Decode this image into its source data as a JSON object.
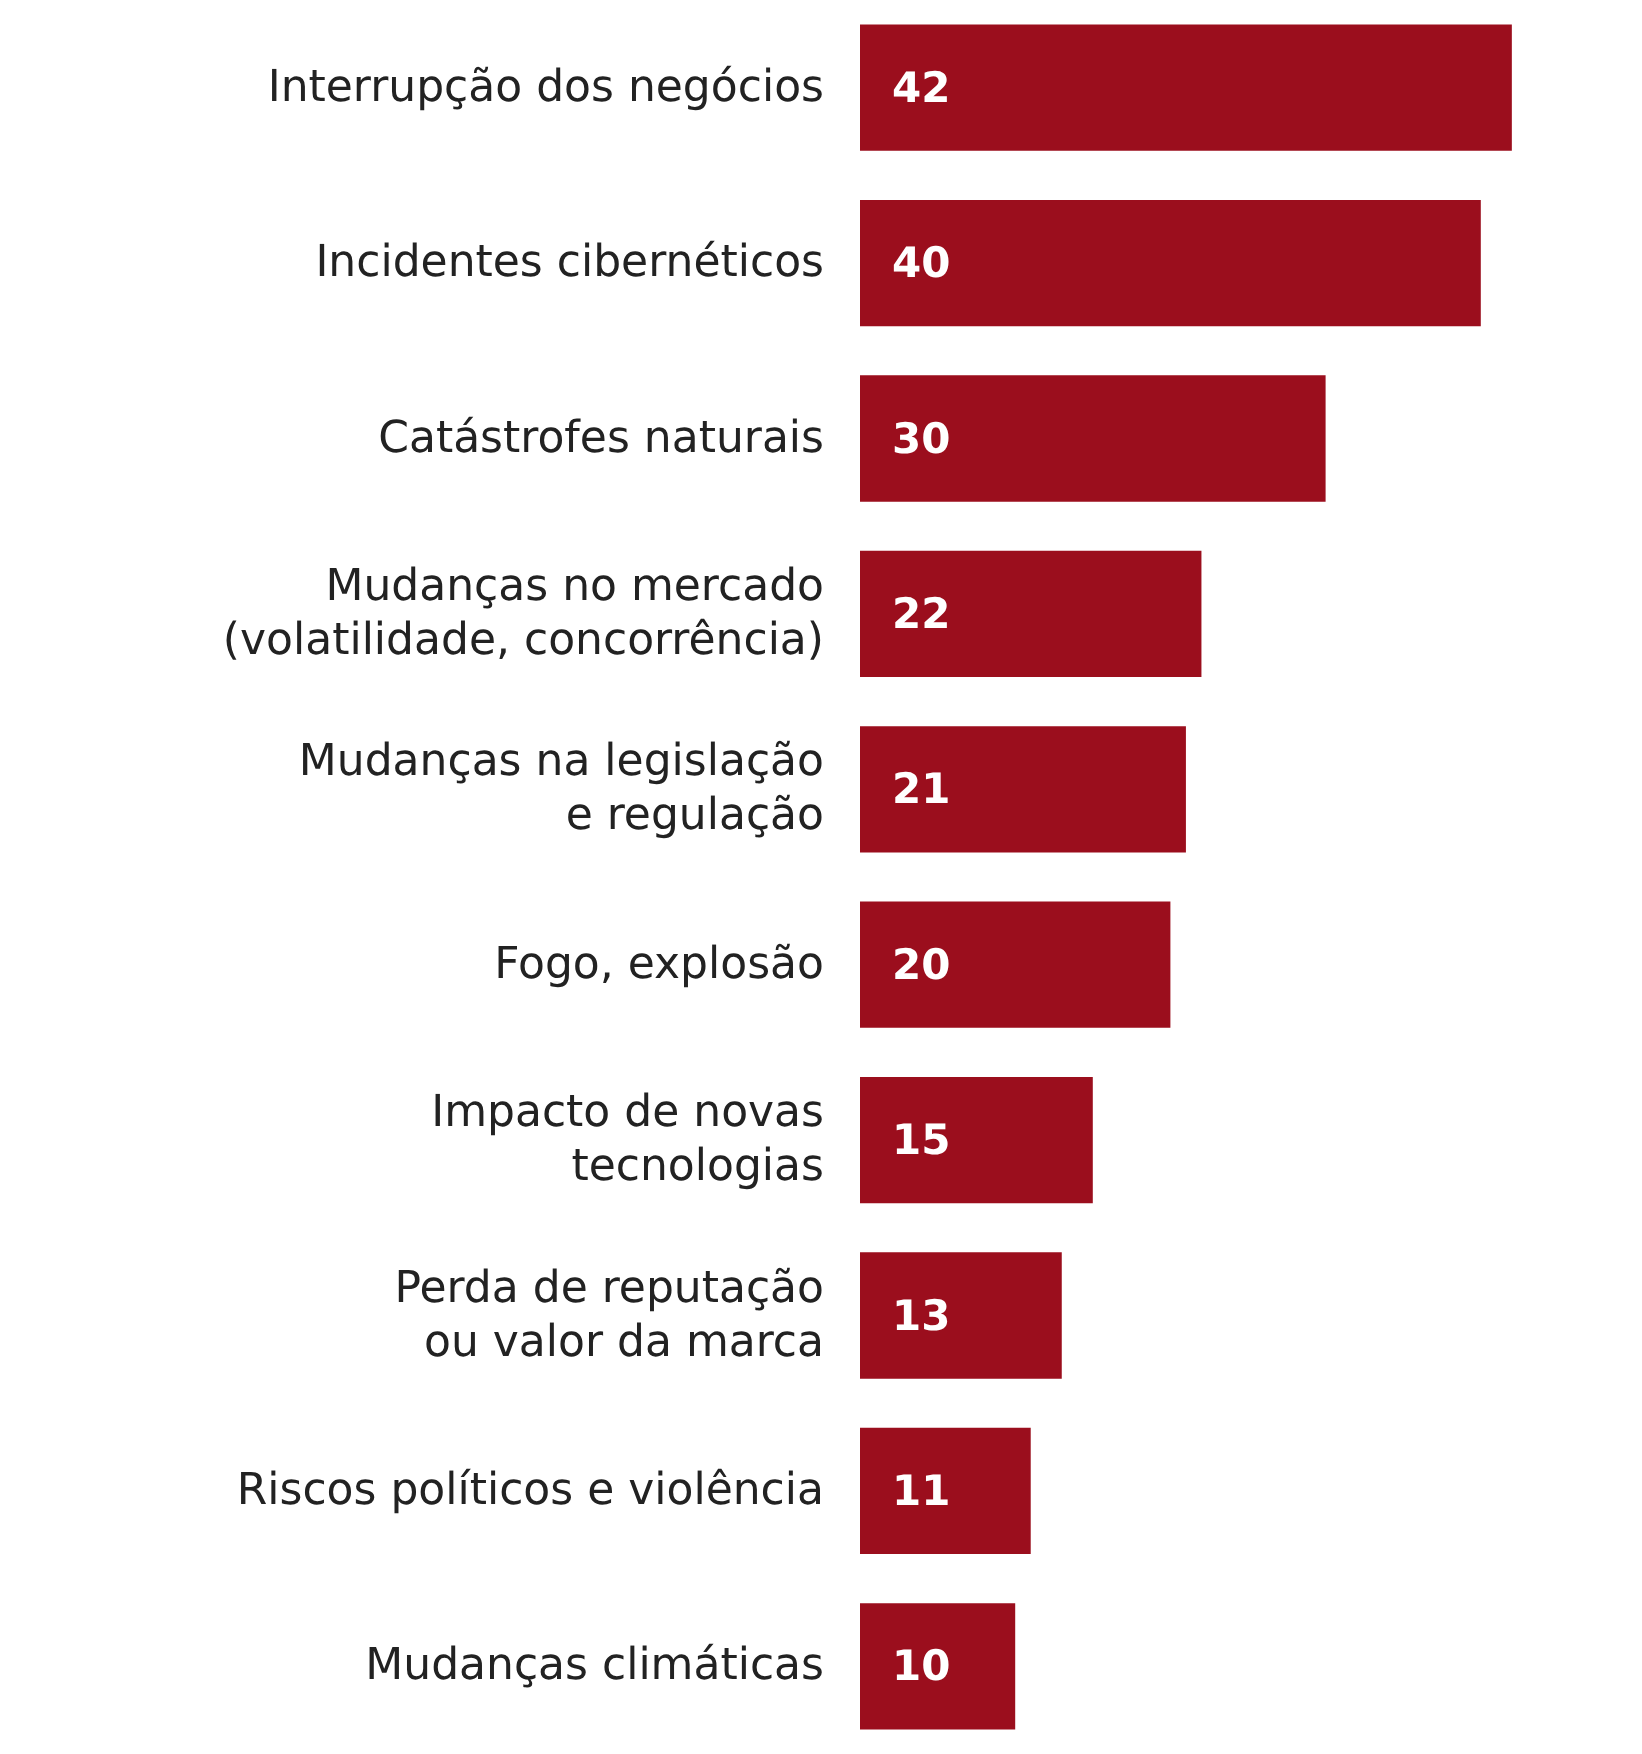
{
  "chart_data": {
    "type": "bar",
    "orientation": "horizontal",
    "categories": [
      "Interrupção dos negócios",
      "Incidentes cibernéticos",
      "Catástrofes naturais",
      "Mudanças no mercado\n(volatilidade, concorrência)",
      "Mudanças na legislação\ne regulação",
      "Fogo, explosão",
      "Impacto de novas\ntecnologias",
      "Perda de reputação\nou valor da marca",
      "Riscos políticos e violência",
      "Mudanças climáticas"
    ],
    "values": [
      42,
      40,
      30,
      22,
      21,
      20,
      15,
      13,
      11,
      10
    ],
    "color": "#9b0e1d",
    "data_labels": true
  }
}
